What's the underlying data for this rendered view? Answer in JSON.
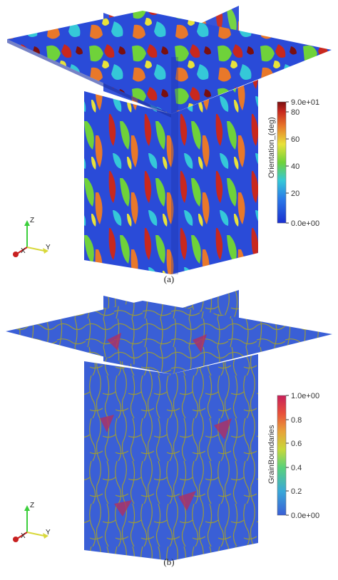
{
  "panels": [
    {
      "id": "a",
      "caption": "(a)",
      "colorbar": {
        "title": "Orientation_(deg)",
        "ticks": [
          "9.0e+01",
          "80",
          "60",
          "40",
          "20",
          "0.0e+00"
        ],
        "scheme": "jet"
      },
      "axes": {
        "x": "X",
        "y": "Y",
        "z": "Z"
      },
      "colors": {
        "blue": "#2a4bd8",
        "cyan": "#35c8d8",
        "green": "#6fd23a",
        "yellow": "#e8e23a",
        "orange": "#e8782a",
        "red": "#c8281e",
        "darkred": "#7a0f10"
      }
    },
    {
      "id": "b",
      "caption": "(b)",
      "colorbar": {
        "title": "GrainBoundaries",
        "ticks": [
          "1.0e+00",
          "0.8",
          "0.6",
          "0.4",
          "0.2",
          "0.0e+00"
        ],
        "scheme": "rainbow"
      },
      "axes": {
        "x": "X",
        "y": "Y",
        "z": "Z"
      },
      "colors": {
        "blue": "#3a5fd6",
        "boundary": "#9a9a3a",
        "magenta": "#b03060"
      }
    }
  ]
}
